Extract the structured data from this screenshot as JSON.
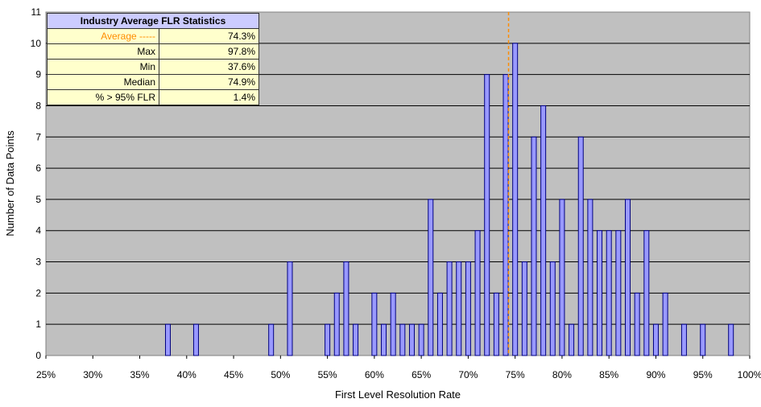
{
  "chart_data": {
    "type": "bar",
    "xlabel": "First Level Resolution Rate",
    "ylabel": "Number of Data Points",
    "xlim": [
      0.25,
      1.0
    ],
    "ylim": [
      0,
      11
    ],
    "x_ticks": [
      "25%",
      "30%",
      "35%",
      "40%",
      "45%",
      "50%",
      "55%",
      "60%",
      "65%",
      "70%",
      "75%",
      "80%",
      "85%",
      "90%",
      "95%",
      "100%"
    ],
    "y_ticks": [
      0,
      1,
      2,
      3,
      4,
      5,
      6,
      7,
      8,
      9,
      10,
      11
    ],
    "grid": "horizontal",
    "bar_color": "#9999ff",
    "plot_background": "#c0c0c0",
    "average_line": {
      "value": 0.743,
      "color": "#ff8c00",
      "style": "dashed"
    },
    "x": [
      0.38,
      0.41,
      0.49,
      0.51,
      0.55,
      0.56,
      0.57,
      0.58,
      0.6,
      0.61,
      0.62,
      0.63,
      0.64,
      0.65,
      0.66,
      0.67,
      0.68,
      0.69,
      0.7,
      0.71,
      0.72,
      0.73,
      0.74,
      0.75,
      0.76,
      0.77,
      0.78,
      0.79,
      0.8,
      0.81,
      0.82,
      0.83,
      0.84,
      0.85,
      0.86,
      0.87,
      0.88,
      0.89,
      0.9,
      0.91,
      0.93,
      0.95,
      0.98
    ],
    "values": [
      1,
      1,
      1,
      3,
      1,
      2,
      3,
      1,
      2,
      1,
      2,
      1,
      1,
      1,
      5,
      2,
      3,
      3,
      3,
      4,
      9,
      2,
      9,
      10,
      3,
      7,
      8,
      3,
      5,
      1,
      7,
      5,
      4,
      4,
      4,
      5,
      2,
      4,
      1,
      2,
      1,
      1,
      1
    ]
  },
  "stats_table": {
    "title": "Industry Average FLR Statistics",
    "rows": [
      {
        "label": "Average -----",
        "value": "74.3%",
        "color": "#ff8c00"
      },
      {
        "label": "Max",
        "value": "97.8%"
      },
      {
        "label": "Min",
        "value": "37.6%"
      },
      {
        "label": "Median",
        "value": "74.9%"
      },
      {
        "label": "% > 95% FLR",
        "value": "1.4%"
      }
    ]
  }
}
